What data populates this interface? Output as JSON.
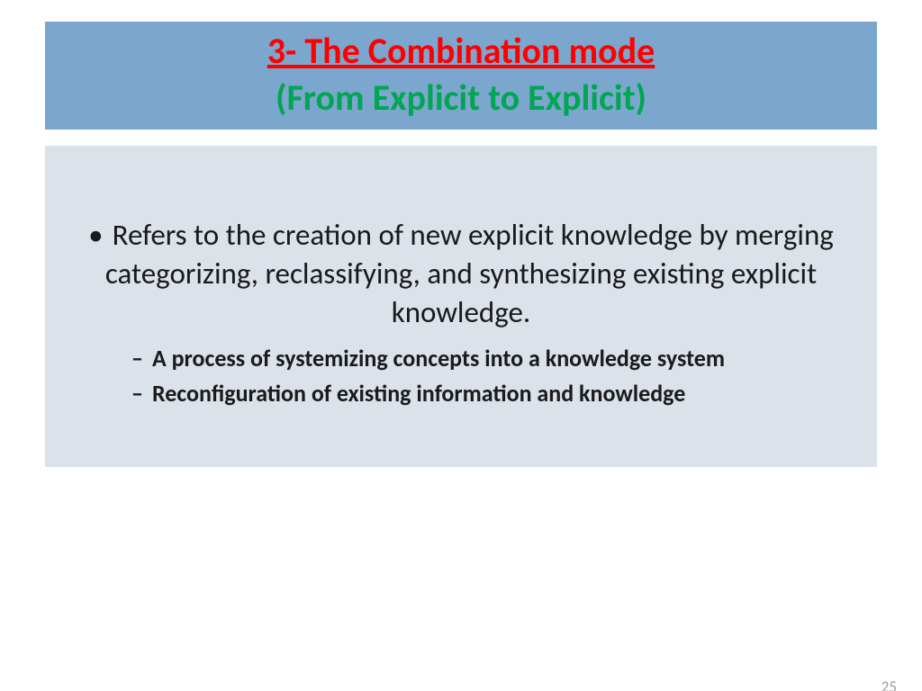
{
  "colors": {
    "header_bg": "#7ba7ce",
    "title_color": "#ff0000",
    "subtitle_color": "#00a651",
    "body_bg": "#dbe2ea",
    "body_text": "#1a1a1a",
    "page_num_color": "#9c9c9c"
  },
  "header": {
    "title": "3- The Combination mode",
    "subtitle": "(From Explicit to Explicit)"
  },
  "body": {
    "main_bullet": "Refers to the creation of new explicit knowledge by merging categorizing, reclassifying, and synthesizing existing explicit knowledge.",
    "sub_bullets": [
      "A process of systemizing concepts into a knowledge system",
      "Reconfiguration of existing information and knowledge"
    ]
  },
  "page_number": "25"
}
